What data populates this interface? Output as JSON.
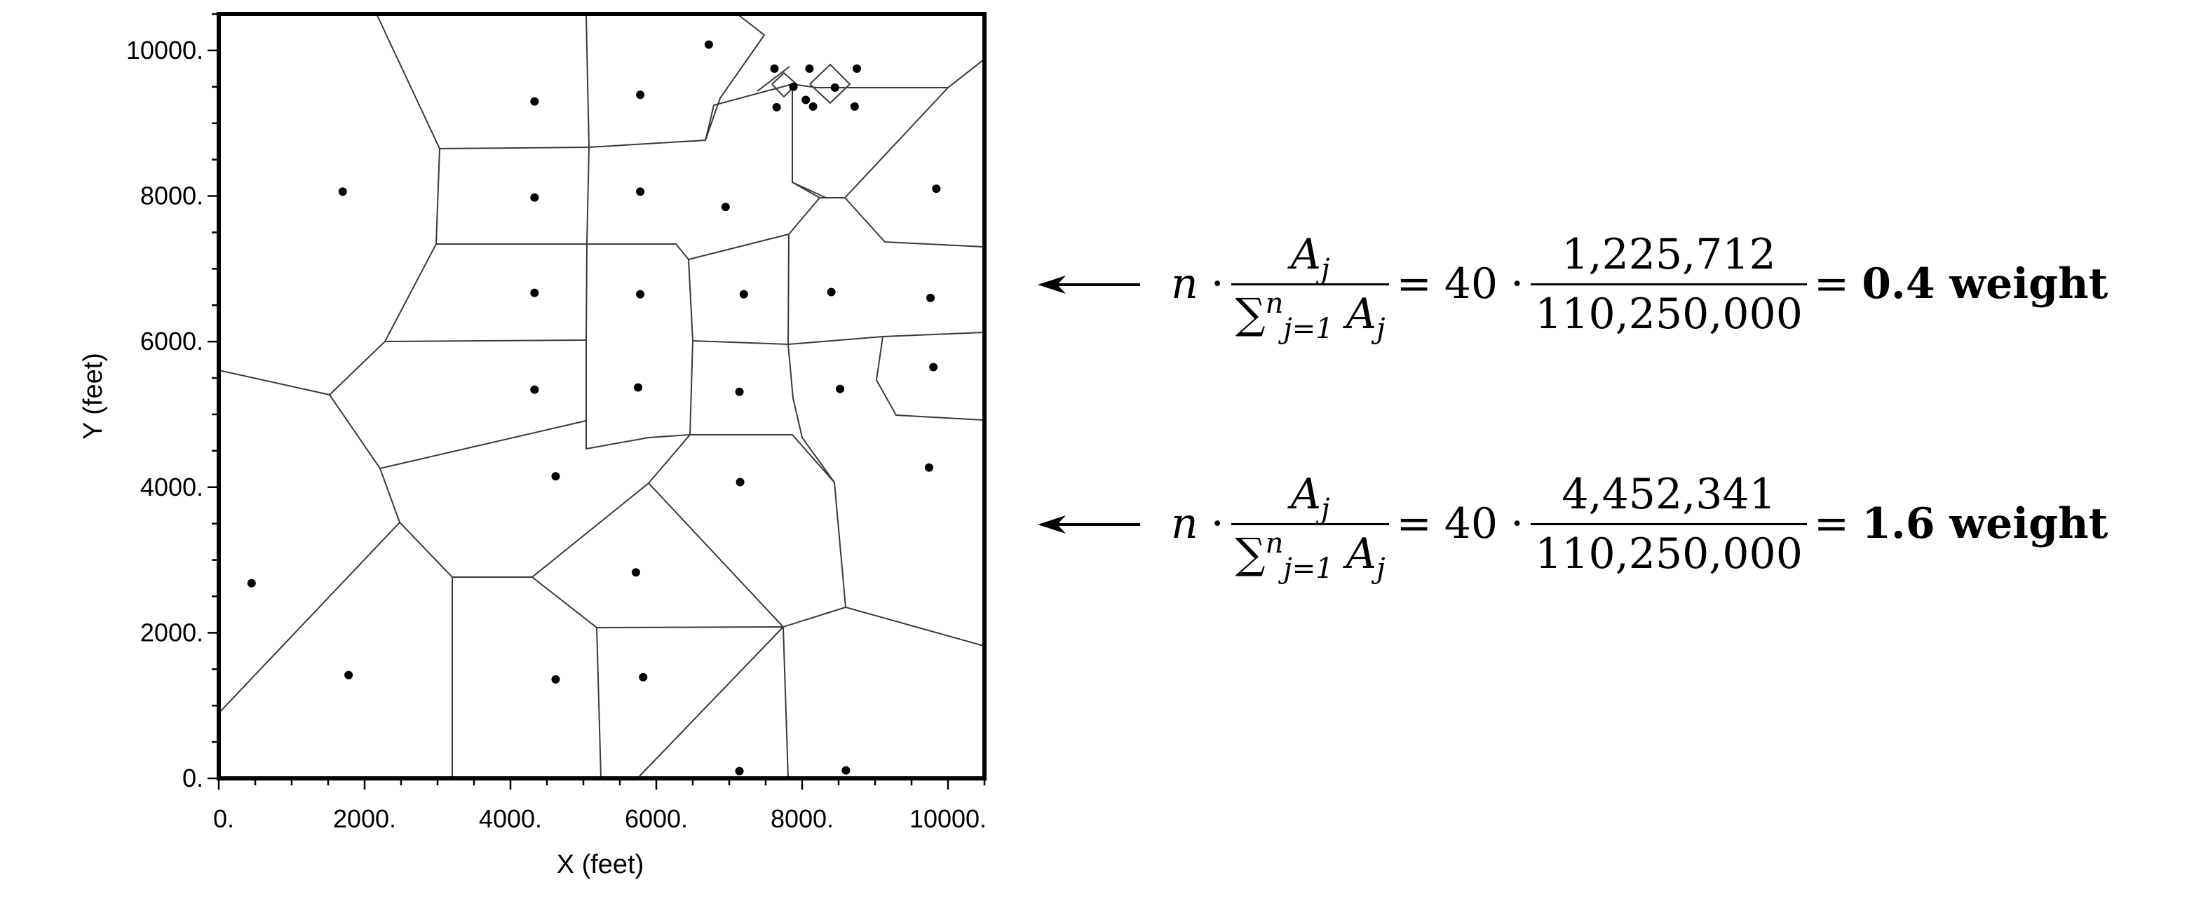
{
  "plot": {
    "xlabel": "X (feet)",
    "ylabel": "Y (feet)",
    "x_ticks": [
      "0.",
      "2000.",
      "4000.",
      "6000.",
      "8000.",
      "10000."
    ],
    "y_ticks": [
      "0.",
      "2000.",
      "4000.",
      "6000.",
      "8000.",
      "10000."
    ],
    "xlim": [
      0,
      10500
    ],
    "ylim": [
      0,
      10500
    ]
  },
  "chart_data": {
    "type": "scatter",
    "xlabel": "X (feet)",
    "ylabel": "Y (feet)",
    "xlim": [
      0,
      10500
    ],
    "ylim": [
      0,
      10500
    ],
    "points": [
      [
        450,
        2680
      ],
      [
        1780,
        1420
      ],
      [
        1700,
        8060
      ],
      [
        4330,
        9300
      ],
      [
        4330,
        7980
      ],
      [
        4330,
        6670
      ],
      [
        4330,
        5340
      ],
      [
        4620,
        4150
      ],
      [
        4620,
        1360
      ],
      [
        5780,
        9390
      ],
      [
        5780,
        8060
      ],
      [
        5780,
        6650
      ],
      [
        5750,
        5370
      ],
      [
        5720,
        2830
      ],
      [
        5820,
        1390
      ],
      [
        6720,
        10080
      ],
      [
        6950,
        7850
      ],
      [
        7200,
        6650
      ],
      [
        7140,
        5310
      ],
      [
        7150,
        4070
      ],
      [
        7140,
        100
      ],
      [
        7620,
        9750
      ],
      [
        7880,
        9500
      ],
      [
        7650,
        9220
      ],
      [
        8050,
        9320
      ],
      [
        8150,
        9230
      ],
      [
        8100,
        9750
      ],
      [
        8450,
        9490
      ],
      [
        8750,
        9750
      ],
      [
        8720,
        9230
      ],
      [
        8400,
        6680
      ],
      [
        8520,
        5350
      ],
      [
        8600,
        110
      ],
      [
        9840,
        8100
      ],
      [
        9760,
        6600
      ],
      [
        9800,
        5650
      ],
      [
        9740,
        4270
      ]
    ]
  },
  "formulas": [
    {
      "n": "n",
      "dot": "·",
      "numerator": "A",
      "sub_j": "j",
      "sum_sup": "n",
      "sum_sub": "j=1",
      "equals": "=",
      "count": "40",
      "area": "1,225,712",
      "total": "110,250,000",
      "result": "0.4 weight"
    },
    {
      "n": "n",
      "dot": "·",
      "numerator": "A",
      "sub_j": "j",
      "sum_sup": "n",
      "sum_sub": "j=1",
      "equals": "=",
      "count": "40",
      "area": "4,452,341",
      "total": "110,250,000",
      "result": "1.6 weight"
    }
  ]
}
